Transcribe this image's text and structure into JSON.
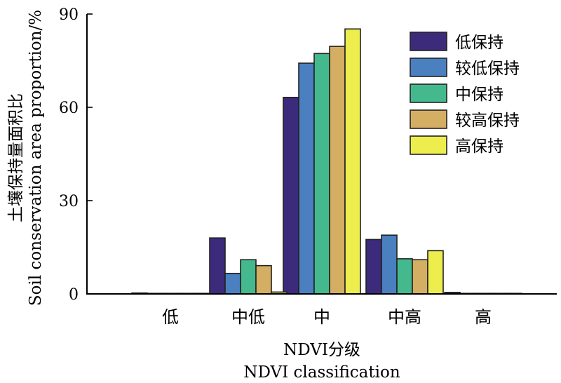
{
  "chart_data": {
    "type": "bar",
    "categories": [
      "低",
      "中低",
      "中",
      "中高",
      "高"
    ],
    "series": [
      {
        "name": "低保持",
        "color": "#3b2b7a",
        "values": [
          0.3,
          18.0,
          63.2,
          17.5,
          0.5
        ]
      },
      {
        "name": "较低保持",
        "color": "#4a7fc0",
        "values": [
          0.1,
          6.6,
          74.2,
          18.9,
          0.1
        ]
      },
      {
        "name": "中保持",
        "color": "#44b98e",
        "values": [
          0.1,
          11.0,
          77.3,
          11.3,
          0.1
        ]
      },
      {
        "name": "较高保持",
        "color": "#d3ae63",
        "values": [
          0.1,
          9.1,
          79.6,
          11.0,
          0.1
        ]
      },
      {
        "name": "高保持",
        "color": "#eded4e",
        "values": [
          0.1,
          0.6,
          85.2,
          13.9,
          0.1
        ]
      }
    ],
    "yticks": [
      0,
      30,
      60,
      90
    ],
    "ylim": [
      0,
      90
    ],
    "ylabel_cn": "土壤保持量面积比",
    "ylabel_en": "Soil conservation area proportion/%",
    "xlabel_cn": "NDVI分级",
    "xlabel_en": "NDVI classification",
    "legend_position": "top-right",
    "grid": false
  }
}
